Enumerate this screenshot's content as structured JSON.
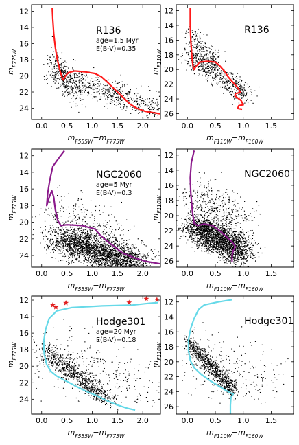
{
  "figure": {
    "axis_labels": {
      "y_f775w": {
        "base": "m",
        "sub": "F775W"
      },
      "y_f110w": {
        "base": "m",
        "sub": "F110W"
      },
      "x_optical": {
        "base1": "m",
        "sub1": "F555W",
        "sep": "−",
        "base2": "m",
        "sub2": "F775W"
      },
      "x_ir": {
        "base1": "m",
        "sub1": "F110W",
        "sep": "−",
        "base2": "m",
        "sub2": "F160W"
      }
    }
  },
  "chart_data": [
    {
      "type": "scatter",
      "panel": "R136 optical",
      "cluster_name": "R136",
      "info_lines": [
        "age=1.5 Myr",
        "E(B-V)=0.35"
      ],
      "xlim": [
        -0.2,
        2.35
      ],
      "ylim": [
        25.4,
        11.2
      ],
      "xticks": [
        0.0,
        0.5,
        1.0,
        1.5,
        2.0
      ],
      "xtick_labels": [
        "0.0",
        "0.5",
        "1.0",
        "1.5",
        "2.0"
      ],
      "yticks": [
        12,
        14,
        16,
        18,
        20,
        22,
        24
      ],
      "ytick_labels": [
        "12",
        "14",
        "16",
        "18",
        "20",
        "22",
        "24"
      ],
      "isochrone_color": "#ff1a1a",
      "isochrone": [
        [
          0.21,
          11.6
        ],
        [
          0.22,
          13.0
        ],
        [
          0.24,
          14.8
        ],
        [
          0.27,
          16.5
        ],
        [
          0.31,
          18.0
        ],
        [
          0.36,
          19.3
        ],
        [
          0.4,
          20.1
        ],
        [
          0.43,
          20.5
        ],
        [
          0.47,
          20.0
        ],
        [
          0.53,
          19.6
        ],
        [
          0.65,
          19.4
        ],
        [
          0.85,
          19.5
        ],
        [
          1.05,
          19.7
        ],
        [
          1.18,
          20.1
        ],
        [
          1.32,
          20.9
        ],
        [
          1.45,
          21.7
        ],
        [
          1.6,
          22.6
        ],
        [
          1.75,
          23.5
        ],
        [
          1.88,
          24.0
        ],
        [
          2.05,
          24.4
        ],
        [
          2.35,
          24.7
        ]
      ],
      "stars": {
        "count": 900,
        "seed": 11,
        "components": [
          {
            "w": 0.7,
            "x0": 0.25,
            "x1": 2.3,
            "ya": 19.0,
            "yb": 2.3,
            "sx": 0.17,
            "sy": 0.75
          },
          {
            "w": 0.3,
            "x0": 0.22,
            "x1": 0.75,
            "ya": 16.3,
            "yb": 8.0,
            "sx": 0.08,
            "sy": 1.0
          }
        ],
        "color": "#000000"
      },
      "bright_stars": []
    },
    {
      "type": "scatter",
      "panel": "R136 infrared",
      "cluster_name": "R136",
      "info_lines": [],
      "xlim": [
        -0.2,
        1.9
      ],
      "ylim": [
        26.8,
        11.2
      ],
      "xticks": [
        0.0,
        0.5,
        1.0,
        1.5
      ],
      "xtick_labels": [
        "0.0",
        "0.5",
        "1.0",
        "1.5"
      ],
      "yticks": [
        12,
        14,
        16,
        18,
        20,
        22,
        24,
        26
      ],
      "ytick_labels": [
        "12",
        "14",
        "16",
        "18",
        "20",
        "22",
        "24",
        "26"
      ],
      "isochrone_color": "#ff1a1a",
      "isochrone": [
        [
          0.05,
          11.6
        ],
        [
          0.05,
          14.0
        ],
        [
          0.06,
          16.0
        ],
        [
          0.08,
          18.2
        ],
        [
          0.1,
          19.5
        ],
        [
          0.12,
          20.0
        ],
        [
          0.15,
          19.6
        ],
        [
          0.22,
          19.0
        ],
        [
          0.35,
          18.9
        ],
        [
          0.5,
          19.0
        ],
        [
          0.58,
          19.5
        ],
        [
          0.66,
          20.2
        ],
        [
          0.73,
          21.0
        ],
        [
          0.82,
          21.8
        ],
        [
          0.88,
          22.3
        ],
        [
          0.92,
          22.7
        ],
        [
          0.95,
          23.1
        ],
        [
          0.86,
          23.3
        ],
        [
          0.85,
          23.6
        ],
        [
          0.96,
          24.2
        ],
        [
          1.0,
          24.8
        ],
        [
          0.92,
          24.9
        ],
        [
          0.9,
          25.3
        ],
        [
          0.98,
          25.4
        ]
      ],
      "stars": {
        "count": 750,
        "seed": 23,
        "components": [
          {
            "w": 0.75,
            "x0": 0.05,
            "x1": 1.05,
            "ya": 17.8,
            "yb": 5.3,
            "sx": 0.09,
            "sy": 0.75
          },
          {
            "w": 0.25,
            "x0": 0.04,
            "x1": 0.55,
            "ya": 15.0,
            "yb": 8.0,
            "sx": 0.05,
            "sy": 0.9
          }
        ],
        "color": "#000000"
      },
      "bright_stars": []
    },
    {
      "type": "scatter",
      "panel": "NGC2060 optical",
      "cluster_name": "NGC2060",
      "info_lines": [
        "age=5 Myr",
        "E(B-V)=0.3"
      ],
      "xlim": [
        -0.2,
        2.35
      ],
      "ylim": [
        25.4,
        11.2
      ],
      "xticks": [
        0.0,
        0.5,
        1.0,
        1.5,
        2.0
      ],
      "xtick_labels": [
        "0.0",
        "0.5",
        "1.0",
        "1.5",
        "2.0"
      ],
      "yticks": [
        12,
        14,
        16,
        18,
        20,
        22,
        24
      ],
      "ytick_labels": [
        "12",
        "14",
        "16",
        "18",
        "20",
        "22",
        "24"
      ],
      "isochrone_color": "#8b1a8b",
      "isochrone": [
        [
          0.45,
          11.4
        ],
        [
          0.35,
          12.2
        ],
        [
          0.22,
          13.3
        ],
        [
          0.16,
          15.0
        ],
        [
          0.12,
          16.5
        ],
        [
          0.1,
          18.0
        ],
        [
          0.15,
          17.0
        ],
        [
          0.2,
          16.2
        ],
        [
          0.24,
          17.0
        ],
        [
          0.27,
          18.5
        ],
        [
          0.32,
          19.8
        ],
        [
          0.38,
          20.4
        ],
        [
          0.5,
          20.3
        ],
        [
          0.8,
          20.4
        ],
        [
          1.05,
          20.8
        ],
        [
          1.15,
          21.5
        ],
        [
          1.3,
          22.3
        ],
        [
          1.45,
          23.0
        ],
        [
          1.6,
          23.7
        ],
        [
          1.8,
          24.2
        ],
        [
          2.05,
          24.7
        ],
        [
          2.35,
          25.0
        ]
      ],
      "stars": {
        "count": 2800,
        "seed": 37,
        "components": [
          {
            "w": 0.85,
            "x0": 0.35,
            "x1": 1.9,
            "ya": 21.3,
            "yb": 2.0,
            "sx": 0.2,
            "sy": 0.9
          },
          {
            "w": 0.15,
            "x0": 0.25,
            "x1": 1.8,
            "ya": 18.0,
            "yb": 3.0,
            "sx": 0.25,
            "sy": 1.5
          }
        ],
        "color": "#000000"
      },
      "bright_stars": []
    },
    {
      "type": "scatter",
      "panel": "NGC2060 infrared",
      "cluster_name": "NGC2060",
      "info_lines": [],
      "xlim": [
        -0.2,
        1.9
      ],
      "ylim": [
        26.8,
        11.2
      ],
      "xticks": [
        0.0,
        0.5,
        1.0,
        1.5
      ],
      "xtick_labels": [
        "0.0",
        "0.5",
        "1.0",
        "1.5"
      ],
      "yticks": [
        12,
        14,
        16,
        18,
        20,
        22,
        24,
        26
      ],
      "ytick_labels": [
        "12",
        "14",
        "16",
        "18",
        "20",
        "22",
        "24",
        "26"
      ],
      "isochrone_color": "#8b1a8b",
      "isochrone": [
        [
          0.12,
          11.4
        ],
        [
          0.07,
          13.0
        ],
        [
          0.05,
          15.0
        ],
        [
          0.06,
          17.0
        ],
        [
          0.09,
          19.5
        ],
        [
          0.12,
          21.0
        ],
        [
          0.18,
          21.3
        ],
        [
          0.3,
          21.1
        ],
        [
          0.45,
          21.3
        ],
        [
          0.58,
          22.0
        ],
        [
          0.7,
          22.8
        ],
        [
          0.8,
          23.5
        ],
        [
          0.86,
          24.1
        ],
        [
          0.82,
          24.6
        ],
        [
          0.8,
          25.3
        ],
        [
          0.8,
          26.1
        ]
      ],
      "stars": {
        "count": 2800,
        "seed": 53,
        "components": [
          {
            "w": 0.88,
            "x0": 0.1,
            "x1": 1.0,
            "ya": 21.0,
            "yb": 3.8,
            "sx": 0.13,
            "sy": 1.0
          },
          {
            "w": 0.12,
            "x0": 0.05,
            "x1": 1.0,
            "ya": 17.0,
            "yb": 4.0,
            "sx": 0.2,
            "sy": 1.4
          }
        ],
        "color": "#000000"
      },
      "bright_stars": []
    },
    {
      "type": "scatter",
      "panel": "Hodge301 optical",
      "cluster_name": "Hodge301",
      "info_lines": [
        "age=20 Myr",
        "E(B-V)=0.18"
      ],
      "xlim": [
        -0.2,
        2.35
      ],
      "ylim": [
        25.8,
        11.5
      ],
      "xticks": [
        0.0,
        0.5,
        1.0,
        1.5,
        2.0
      ],
      "xtick_labels": [
        "0.0",
        "0.5",
        "1.0",
        "1.5",
        "2.0"
      ],
      "yticks": [
        12,
        14,
        16,
        18,
        20,
        22,
        24
      ],
      "ytick_labels": [
        "12",
        "14",
        "16",
        "18",
        "20",
        "22",
        "24"
      ],
      "isochrone_color": "#66d9e8",
      "isochrone": [
        [
          2.3,
          12.3
        ],
        [
          2.1,
          12.4
        ],
        [
          1.8,
          12.6
        ],
        [
          1.2,
          12.7
        ],
        [
          0.6,
          12.9
        ],
        [
          0.3,
          13.3
        ],
        [
          0.15,
          14.2
        ],
        [
          0.08,
          15.5
        ],
        [
          0.04,
          17.0
        ],
        [
          0.05,
          18.5
        ],
        [
          0.1,
          19.8
        ],
        [
          0.18,
          20.6
        ],
        [
          0.3,
          21.2
        ],
        [
          0.45,
          21.7
        ],
        [
          0.55,
          22.0
        ],
        [
          0.7,
          22.5
        ],
        [
          0.9,
          23.1
        ],
        [
          1.1,
          23.6
        ],
        [
          1.3,
          24.2
        ],
        [
          1.5,
          24.7
        ],
        [
          1.7,
          25.1
        ],
        [
          1.85,
          25.3
        ]
      ],
      "stars": {
        "count": 1100,
        "seed": 71,
        "components": [
          {
            "w": 0.7,
            "x0": 0.05,
            "x1": 1.35,
            "ya": 17.8,
            "yb": 4.8,
            "sx": 0.08,
            "sy": 0.5
          },
          {
            "w": 0.3,
            "x0": 0.0,
            "x1": 2.2,
            "ya": 18.0,
            "yb": 2.4,
            "sx": 0.3,
            "sy": 1.8
          }
        ],
        "color": "#000000"
      },
      "bright_stars": {
        "marker": "star",
        "color": "#e02020",
        "points": [
          [
            0.22,
            12.6
          ],
          [
            0.28,
            12.85
          ],
          [
            0.48,
            12.35
          ],
          [
            1.73,
            12.3
          ],
          [
            2.07,
            11.85
          ],
          [
            2.28,
            11.95
          ]
        ]
      }
    },
    {
      "type": "scatter",
      "panel": "Hodge301 infrared",
      "cluster_name": "Hodge301",
      "info_lines": [],
      "xlim": [
        -0.2,
        1.9
      ],
      "ylim": [
        27.0,
        11.2
      ],
      "xticks": [
        0.0,
        0.5,
        1.0,
        1.5
      ],
      "xtick_labels": [
        "0.0",
        "0.5",
        "1.0",
        "1.5"
      ],
      "yticks": [
        12,
        14,
        16,
        18,
        20,
        22,
        24,
        26
      ],
      "ytick_labels": [
        "12",
        "14",
        "16",
        "18",
        "20",
        "22",
        "24",
        "26"
      ],
      "isochrone_color": "#66d9e8",
      "isochrone": [
        [
          0.8,
          11.7
        ],
        [
          0.55,
          12.0
        ],
        [
          0.3,
          12.4
        ],
        [
          0.2,
          13.0
        ],
        [
          0.12,
          14.2
        ],
        [
          0.06,
          15.5
        ],
        [
          0.02,
          17.0
        ],
        [
          0.02,
          18.5
        ],
        [
          0.05,
          19.8
        ],
        [
          0.12,
          20.8
        ],
        [
          0.25,
          21.7
        ],
        [
          0.4,
          22.5
        ],
        [
          0.55,
          23.2
        ],
        [
          0.68,
          23.8
        ],
        [
          0.78,
          24.2
        ],
        [
          0.82,
          24.3
        ],
        [
          0.78,
          24.8
        ],
        [
          0.77,
          25.8
        ],
        [
          0.77,
          27.0
        ]
      ],
      "stars": {
        "count": 1000,
        "seed": 89,
        "components": [
          {
            "w": 0.75,
            "x0": 0.0,
            "x1": 0.85,
            "ya": 17.4,
            "yb": 7.7,
            "sx": 0.05,
            "sy": 0.55
          },
          {
            "w": 0.25,
            "x0": 0.0,
            "x1": 1.5,
            "ya": 19.0,
            "yb": 3.0,
            "sx": 0.2,
            "sy": 2.2
          }
        ],
        "color": "#000000"
      },
      "bright_stars": []
    }
  ]
}
